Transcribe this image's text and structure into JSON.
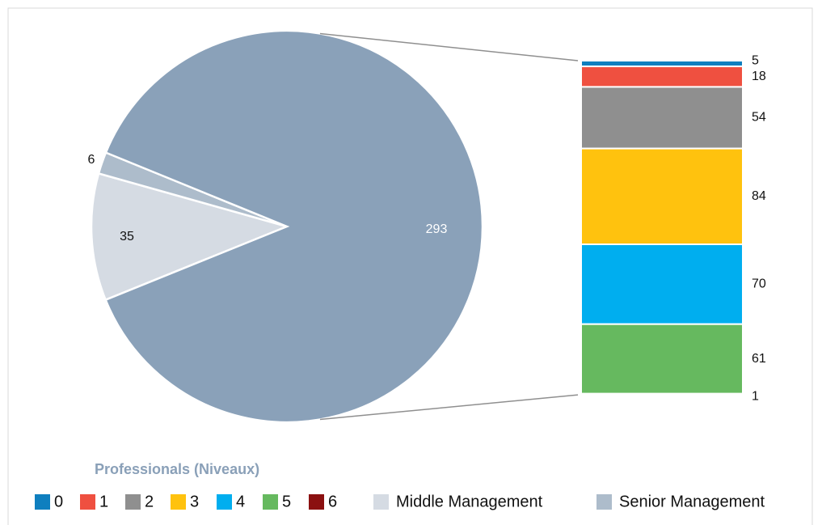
{
  "chart_data": {
    "type": "pie-of-bar",
    "legend_title": "Professionals (Niveaux)",
    "slices": [
      {
        "name": "Middle Management",
        "color": "#d5dbe3",
        "value": 35
      },
      {
        "name": "Senior Management",
        "color": "#adbccb",
        "value": 6
      },
      {
        "color": "#8aa1b9",
        "value": 293
      }
    ],
    "breakdown": {
      "categories": [
        "0",
        "1",
        "2",
        "3",
        "4",
        "5",
        "6"
      ],
      "values": [
        5,
        18,
        54,
        84,
        70,
        61,
        1
      ],
      "colors": [
        "#0f7fbf",
        "#ef5040",
        "#8f8f8f",
        "#ffc20e",
        "#00aeef",
        "#66b95f",
        "#8b1010"
      ]
    }
  }
}
